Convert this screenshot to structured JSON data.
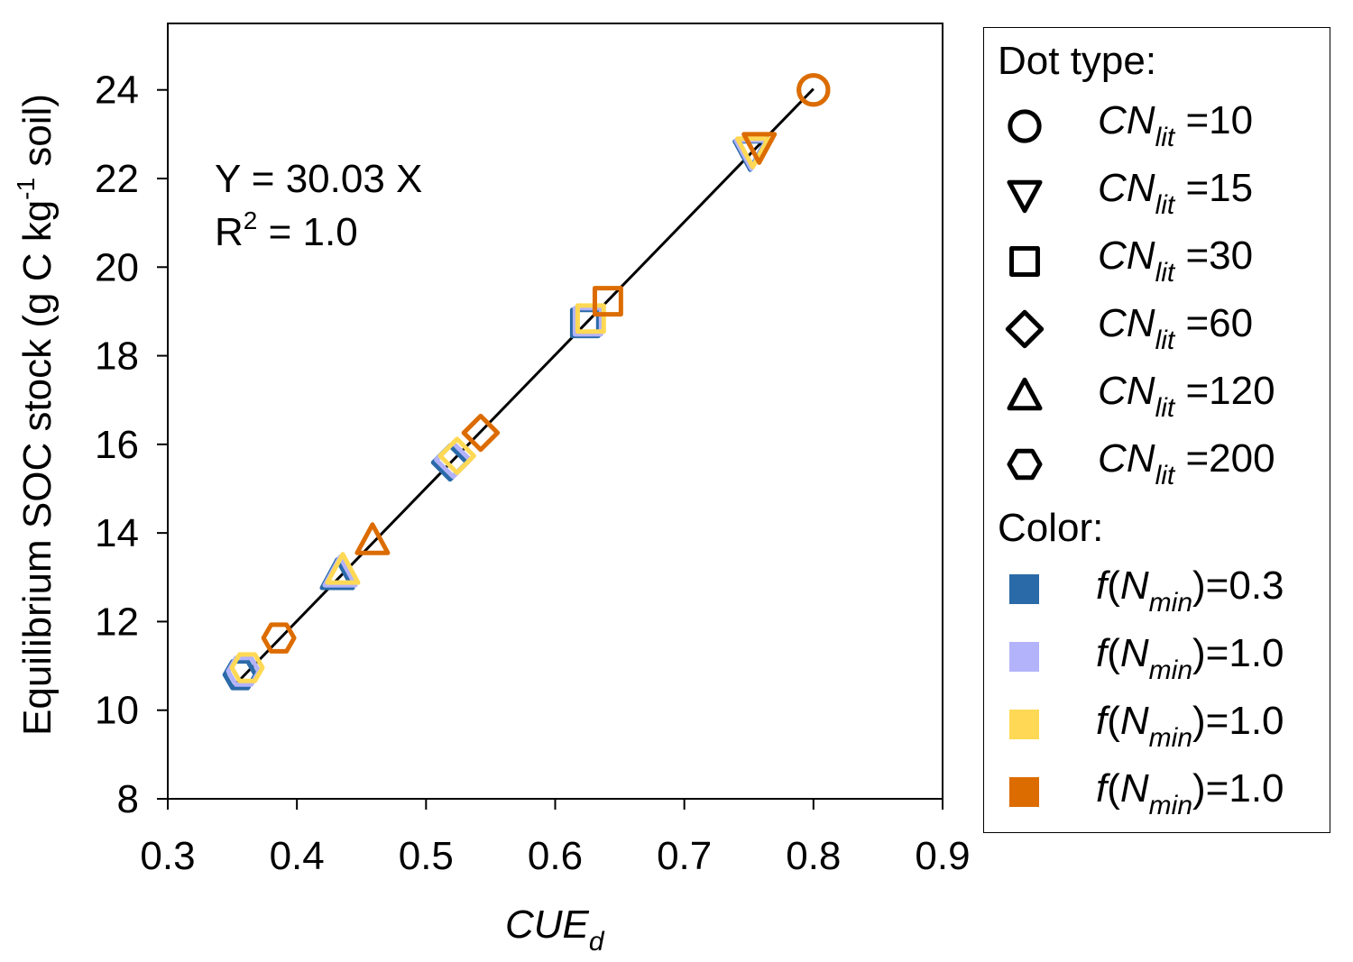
{
  "chart_data": {
    "type": "scatter",
    "xlabel": "CUE",
    "xlabel_sub": "d",
    "ylabel": "Equilibrium SOC stock (g C kg",
    "ylabel_sup": "-1",
    "ylabel_end": " soil)",
    "xlim": [
      0.3,
      0.9
    ],
    "ylim": [
      8,
      25.5
    ],
    "xticks": [
      "0.3",
      "0.4",
      "0.5",
      "0.6",
      "0.7",
      "0.8",
      "0.9"
    ],
    "yticks": [
      "8",
      "10",
      "12",
      "14",
      "16",
      "18",
      "20",
      "22",
      "24"
    ],
    "grid": false,
    "legend_position": "right",
    "annotation": {
      "line1": "Y = 30.03 X",
      "line2_prefix": "R",
      "line2_sup": "2",
      "line2_suffix": " = 1.0"
    },
    "fit_line": {
      "slope": 30.03,
      "x_range": [
        0.35,
        0.8
      ]
    },
    "colors": [
      "#2a6aa8",
      "#b3b3fb",
      "#ffd955",
      "#dc6c00"
    ],
    "points": [
      {
        "shape": "hexagon",
        "x": [
          0.356,
          0.3587,
          0.3615,
          0.386
        ],
        "y": [
          10.8,
          10.88,
          10.96,
          11.63
        ]
      },
      {
        "shape": "triangle-up",
        "x": [
          0.4313,
          0.4334,
          0.4355,
          0.4585
        ],
        "y": [
          13.02,
          13.08,
          13.14,
          13.81
        ]
      },
      {
        "shape": "diamond",
        "x": [
          0.5186,
          0.521,
          0.524,
          0.5423
        ],
        "y": [
          15.59,
          15.65,
          15.74,
          16.26
        ]
      },
      {
        "shape": "square",
        "x": [
          0.6233,
          0.6254,
          0.6275,
          0.6408
        ],
        "y": [
          18.74,
          18.78,
          18.84,
          19.23
        ]
      },
      {
        "shape": "triangle-down",
        "x": [
          0.751,
          0.7518,
          0.753,
          0.758
        ],
        "y": [
          22.58,
          22.6,
          22.64,
          22.74
        ]
      },
      {
        "shape": "circle",
        "x": [
          0.8,
          0.8,
          0.8,
          0.8
        ],
        "y": [
          24.0,
          24.0,
          24.0,
          24.0
        ]
      }
    ]
  },
  "legend": {
    "dot_title": "Dot type:",
    "dot_types": [
      {
        "shape": "circle",
        "base": "CN",
        "sub": "lit",
        "value": " =10"
      },
      {
        "shape": "triangle-down",
        "base": "CN",
        "sub": "lit",
        "value": " =15"
      },
      {
        "shape": "square",
        "base": "CN",
        "sub": "lit",
        "value": " =30"
      },
      {
        "shape": "diamond",
        "base": "CN",
        "sub": "lit",
        "value": " =60"
      },
      {
        "shape": "triangle-up",
        "base": "CN",
        "sub": "lit",
        "value": " =120"
      },
      {
        "shape": "hexagon",
        "base": "CN",
        "sub": "lit",
        "value": " =200"
      }
    ],
    "color_title": "Color:",
    "colors": [
      {
        "color": "#2a6aa8",
        "prefix": "f",
        "paren": "(N",
        "sub": "min",
        "suffix": ")=0.3"
      },
      {
        "color": "#b3b3fb",
        "prefix": "f",
        "paren": "(N",
        "sub": "min",
        "suffix": ")=1.0"
      },
      {
        "color": "#ffd955",
        "prefix": "f",
        "paren": "(N",
        "sub": "min",
        "suffix": ")=1.0"
      },
      {
        "color": "#dc6c00",
        "prefix": "f",
        "paren": "(N",
        "sub": "min",
        "suffix": ")=1.0"
      }
    ]
  }
}
